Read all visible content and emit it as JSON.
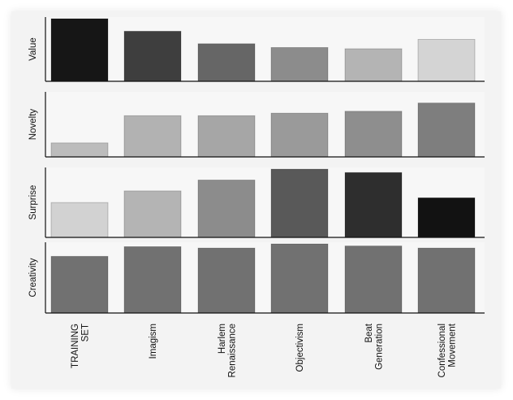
{
  "chart_data": {
    "type": "bar",
    "layout": "stacked-panels",
    "categories": [
      "TRAINING SET",
      "Imagism",
      "Harlem Renaissance",
      "Objectivism",
      "Beat Generation",
      "Confessional Movement"
    ],
    "category_label_lines": [
      [
        "TRAINING",
        "SET"
      ],
      [
        "Imagism"
      ],
      [
        "Harlem",
        "Renaissance"
      ],
      [
        "Objectivism"
      ],
      [
        "Beat",
        "Generation"
      ],
      [
        "Confessional",
        "Movement"
      ]
    ],
    "ylim": [
      0,
      1
    ],
    "grid": false,
    "legend": "none",
    "panels": [
      {
        "ylabel": "Value",
        "values": [
          1.0,
          0.8,
          0.6,
          0.54,
          0.52,
          0.67
        ],
        "colors": [
          "#161616",
          "#3e3e3e",
          "#666666",
          "#8c8c8c",
          "#b4b4b4",
          "#d4d4d4"
        ]
      },
      {
        "ylabel": "Novelty",
        "values": [
          0.22,
          0.65,
          0.65,
          0.69,
          0.72,
          0.85
        ],
        "colors": [
          "#bcbcbc",
          "#b2b2b2",
          "#a6a6a6",
          "#9a9a9a",
          "#8e8e8e",
          "#7e7e7e"
        ]
      },
      {
        "ylabel": "Surprise",
        "values": [
          0.51,
          0.68,
          0.84,
          1.0,
          0.95,
          0.58
        ],
        "colors": [
          "#d2d2d2",
          "#b4b4b4",
          "#8c8c8c",
          "#595959",
          "#2e2e2e",
          "#121212"
        ]
      },
      {
        "ylabel": "Creativity",
        "values": [
          0.82,
          0.96,
          0.94,
          1.0,
          0.97,
          0.94
        ],
        "colors": [
          "#717171",
          "#717171",
          "#717171",
          "#717171",
          "#717171",
          "#717171"
        ]
      }
    ]
  }
}
